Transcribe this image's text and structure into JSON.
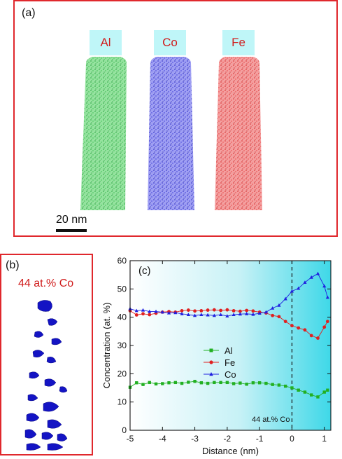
{
  "panel_a": {
    "label": "(a)",
    "elements": [
      {
        "name": "Al",
        "color": "#1faa3c"
      },
      {
        "name": "Co",
        "color": "#2323c8"
      },
      {
        "name": "Fe",
        "color": "#e8252a"
      }
    ],
    "scale_bar": "20 nm"
  },
  "panel_b": {
    "label": "(b)",
    "title": "44 at.% Co",
    "color": "#1010c0"
  },
  "chart_data": {
    "type": "line",
    "panel_label": "(c)",
    "xlabel": "Distance (nm)",
    "ylabel": "Concentration (at. %)",
    "xlim": [
      -5,
      1.2
    ],
    "ylim": [
      0,
      60
    ],
    "xticks": [
      -5,
      -4,
      -3,
      -2,
      -1,
      0,
      1
    ],
    "yticks": [
      0,
      10,
      20,
      30,
      40,
      50,
      60
    ],
    "annotation": "44 at.% Co",
    "interface_x": 0,
    "x": [
      -5.0,
      -4.8,
      -4.6,
      -4.4,
      -4.2,
      -4.0,
      -3.8,
      -3.6,
      -3.4,
      -3.2,
      -3.0,
      -2.8,
      -2.6,
      -2.4,
      -2.2,
      -2.0,
      -1.8,
      -1.6,
      -1.4,
      -1.2,
      -1.0,
      -0.8,
      -0.6,
      -0.4,
      -0.2,
      0.0,
      0.2,
      0.4,
      0.6,
      0.8,
      1.0,
      1.1
    ],
    "series": [
      {
        "name": "Al",
        "color": "#22b022",
        "marker": "square",
        "values": [
          15.2,
          16.8,
          16.2,
          16.9,
          16.4,
          16.5,
          16.8,
          16.9,
          16.6,
          17.0,
          17.3,
          16.8,
          16.6,
          16.9,
          16.9,
          16.9,
          16.5,
          16.7,
          16.3,
          16.8,
          16.8,
          16.6,
          16.2,
          16.0,
          15.6,
          15.0,
          14.2,
          13.5,
          12.5,
          11.8,
          13.5,
          14.2
        ]
      },
      {
        "name": "Fe",
        "color": "#e02020",
        "marker": "circle",
        "values": [
          42.3,
          40.8,
          41.2,
          40.9,
          41.4,
          41.8,
          42.0,
          41.8,
          42.3,
          42.5,
          42.2,
          42.3,
          42.5,
          42.6,
          42.4,
          42.6,
          42.3,
          42.1,
          42.4,
          42.2,
          41.8,
          41.5,
          40.6,
          40.2,
          38.5,
          37.0,
          36.2,
          35.5,
          33.5,
          32.6,
          36.5,
          38.5
        ]
      },
      {
        "name": "Co",
        "color": "#2020e0",
        "marker": "triangle",
        "values": [
          43.0,
          42.3,
          42.5,
          42.0,
          42.0,
          41.8,
          41.5,
          41.6,
          41.2,
          40.9,
          40.6,
          40.9,
          40.8,
          40.6,
          40.9,
          40.4,
          40.9,
          41.1,
          41.2,
          41.0,
          41.4,
          41.8,
          43.2,
          44.2,
          46.5,
          49.2,
          50.2,
          52.3,
          54.1,
          55.4,
          51.0,
          47.0
        ]
      }
    ]
  }
}
